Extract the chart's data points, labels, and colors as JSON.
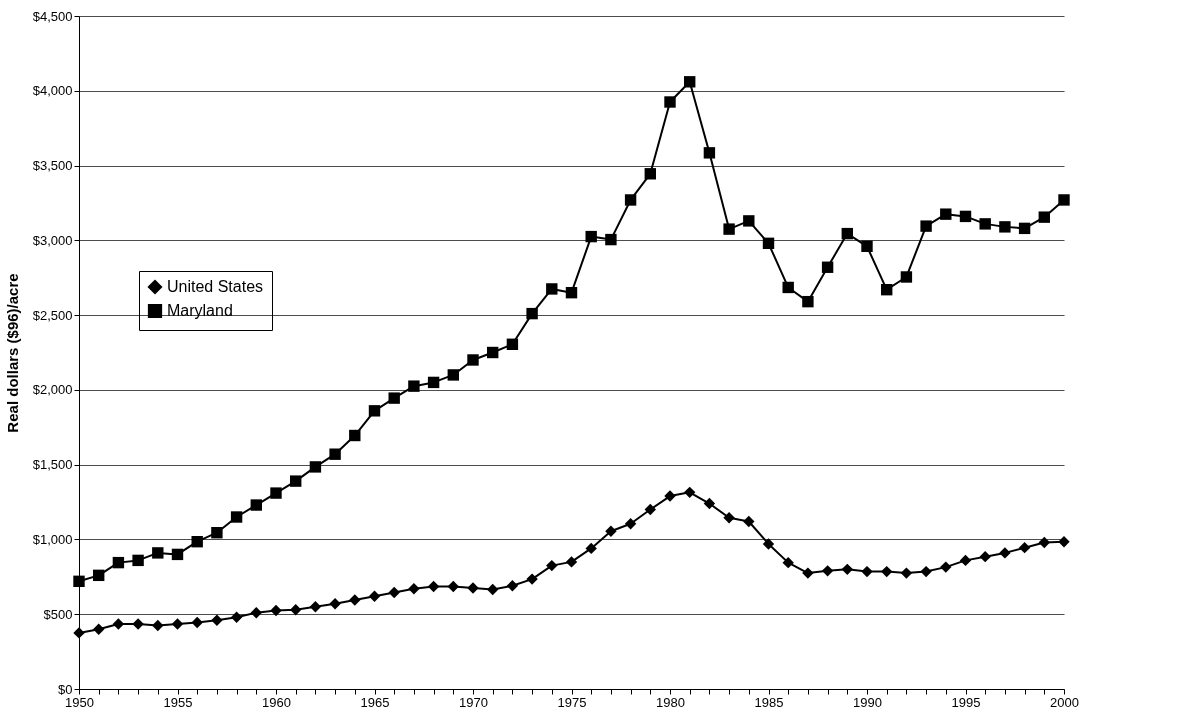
{
  "chart_data": {
    "type": "line",
    "ylabel": "Real dollars ($96)/acre",
    "x": [
      1950,
      1951,
      1952,
      1953,
      1954,
      1955,
      1956,
      1957,
      1958,
      1959,
      1960,
      1961,
      1962,
      1963,
      1964,
      1965,
      1966,
      1967,
      1968,
      1969,
      1970,
      1971,
      1972,
      1973,
      1974,
      1975,
      1976,
      1977,
      1978,
      1979,
      1980,
      1981,
      1982,
      1983,
      1984,
      1985,
      1986,
      1987,
      1988,
      1989,
      1990,
      1991,
      1992,
      1993,
      1994,
      1995,
      1996,
      1997,
      1998,
      1999,
      2000
    ],
    "series": [
      {
        "name": "United States",
        "color": "#000000",
        "marker": "diamond",
        "values": [
          375,
          400,
          435,
          435,
          425,
          435,
          445,
          460,
          480,
          510,
          525,
          530,
          550,
          570,
          595,
          620,
          645,
          670,
          685,
          685,
          675,
          665,
          690,
          735,
          825,
          850,
          940,
          1055,
          1105,
          1200,
          1290,
          1315,
          1240,
          1145,
          1120,
          970,
          845,
          775,
          790,
          800,
          785,
          785,
          775,
          785,
          815,
          860,
          885,
          910,
          945,
          980,
          985
        ]
      },
      {
        "name": "Maryland",
        "color": "#000000",
        "marker": "square",
        "values": [
          720,
          760,
          845,
          860,
          910,
          900,
          985,
          1045,
          1150,
          1230,
          1310,
          1390,
          1485,
          1570,
          1695,
          1860,
          1945,
          2025,
          2050,
          2100,
          2200,
          2250,
          2305,
          2510,
          2675,
          2650,
          3025,
          3005,
          3270,
          3445,
          3925,
          4060,
          3585,
          3075,
          3130,
          2980,
          2685,
          2590,
          2820,
          3045,
          2960,
          2670,
          2755,
          3095,
          3175,
          3160,
          3110,
          3090,
          3080,
          3155,
          3270
        ]
      }
    ],
    "xlim": [
      1950,
      2000
    ],
    "xticks": [
      1950,
      {
        "value": 1951,
        "label": null
      },
      {
        "value": 1952,
        "label": null
      },
      {
        "value": 1953,
        "label": null
      },
      {
        "value": 1954,
        "label": null
      },
      1955,
      {
        "value": 1956,
        "label": null
      },
      {
        "value": 1957,
        "label": null
      },
      {
        "value": 1958,
        "label": null
      },
      {
        "value": 1959,
        "label": null
      },
      1960,
      {
        "value": 1961,
        "label": null
      },
      {
        "value": 1962,
        "label": null
      },
      {
        "value": 1963,
        "label": null
      },
      {
        "value": 1964,
        "label": null
      },
      1965,
      {
        "value": 1966,
        "label": null
      },
      {
        "value": 1967,
        "label": null
      },
      {
        "value": 1968,
        "label": null
      },
      {
        "value": 1969,
        "label": null
      },
      1970,
      {
        "value": 1971,
        "label": null
      },
      {
        "value": 1972,
        "label": null
      },
      {
        "value": 1973,
        "label": null
      },
      {
        "value": 1974,
        "label": null
      },
      1975,
      {
        "value": 1976,
        "label": null
      },
      {
        "value": 1977,
        "label": null
      },
      {
        "value": 1978,
        "label": null
      },
      {
        "value": 1979,
        "label": null
      },
      1980,
      {
        "value": 1981,
        "label": null
      },
      {
        "value": 1982,
        "label": null
      },
      {
        "value": 1983,
        "label": null
      },
      {
        "value": 1984,
        "label": null
      },
      1985,
      {
        "value": 1986,
        "label": null
      },
      {
        "value": 1987,
        "label": null
      },
      {
        "value": 1988,
        "label": null
      },
      {
        "value": 1989,
        "label": null
      },
      1990,
      {
        "value": 1991,
        "label": null
      },
      {
        "value": 1992,
        "label": null
      },
      {
        "value": 1993,
        "label": null
      },
      {
        "value": 1994,
        "label": null
      },
      1995,
      {
        "value": 1996,
        "label": null
      },
      {
        "value": 1997,
        "label": null
      },
      {
        "value": 1998,
        "label": null
      },
      {
        "value": 1999,
        "label": null
      },
      2000
    ],
    "ylim": [
      0,
      4500
    ],
    "yticks": [
      {
        "value": 0,
        "label": "$0"
      },
      {
        "value": 500,
        "label": "$500"
      },
      {
        "value": 1000,
        "label": "$1,000"
      },
      {
        "value": 1500,
        "label": "$1,500"
      },
      {
        "value": 2000,
        "label": "$2,000"
      },
      {
        "value": 2500,
        "label": "$2,500"
      },
      {
        "value": 3000,
        "label": "$3,000"
      },
      {
        "value": 3500,
        "label": "$3,500"
      },
      {
        "value": 4000,
        "label": "$4,000"
      },
      {
        "value": 4500,
        "label": "$4,500"
      }
    ],
    "grid": "y",
    "legend": "left",
    "line_style": "solid"
  }
}
